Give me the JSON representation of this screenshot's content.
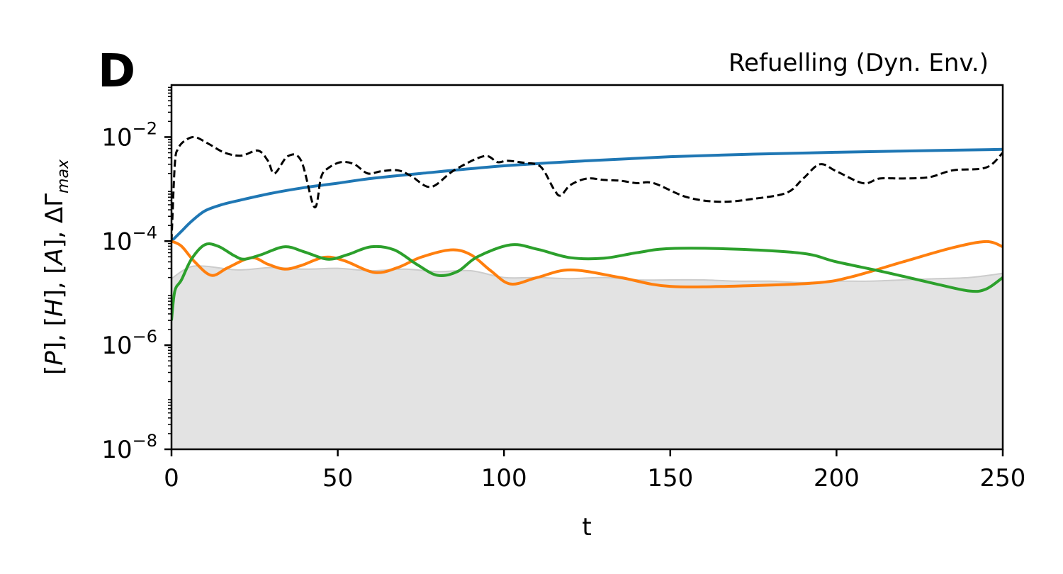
{
  "panel_label": "D",
  "chart_data": {
    "type": "line",
    "title": "Refuelling (Dyn. Env.)",
    "xlabel": "t",
    "ylabel": "[P], [H], [A], ΔΓmax",
    "xlim": [
      0,
      250
    ],
    "ylim": [
      1e-08,
      0.1
    ],
    "yscale": "log",
    "grid": false,
    "legend": "none",
    "x_ticks": [
      "0",
      "50",
      "100",
      "150",
      "200",
      "250"
    ],
    "y_ticks": [
      {
        "base": "10",
        "exp": "−8",
        "value": 1e-08
      },
      {
        "base": "10",
        "exp": "−6",
        "value": 1e-06
      },
      {
        "base": "10",
        "exp": "−4",
        "value": 0.0001
      },
      {
        "base": "10",
        "exp": "−2",
        "value": 0.01
      }
    ],
    "shaded_region": {
      "color": "#e3e3e3",
      "edge_color": "#cccccc",
      "x": [
        0,
        5,
        10,
        20,
        30,
        40,
        50,
        60,
        70,
        80,
        90,
        100,
        110,
        120,
        130,
        140,
        150,
        160,
        170,
        180,
        190,
        200,
        210,
        220,
        230,
        240,
        250
      ],
      "upper": [
        1.9e-05,
        3.1e-05,
        3.3e-05,
        2.8e-05,
        3.1e-05,
        2.9e-05,
        3e-05,
        2.7e-05,
        2.9e-05,
        2.6e-05,
        2.7e-05,
        2e-05,
        2e-05,
        1.9e-05,
        2e-05,
        1.8e-05,
        1.8e-05,
        1.8e-05,
        1.7e-05,
        1.7e-05,
        1.6e-05,
        1.7e-05,
        1.7e-05,
        1.8e-05,
        1.9e-05,
        2e-05,
        2.4e-05
      ],
      "lower": 1e-08
    },
    "series": [
      {
        "color": "#1f77b4",
        "style": "solid",
        "x": [
          0,
          3,
          6,
          10,
          15,
          20,
          30,
          40,
          50,
          60,
          75,
          100,
          125,
          150,
          175,
          200,
          225,
          250
        ],
        "values": [
          0.0001,
          0.000155,
          0.00024,
          0.00038,
          0.0005,
          0.0006,
          0.00083,
          0.00107,
          0.0013,
          0.0016,
          0.002,
          0.0028,
          0.0035,
          0.0042,
          0.0047,
          0.0051,
          0.00545,
          0.0058
        ]
      },
      {
        "color": "#ff7f0e",
        "style": "solid",
        "x": [
          0,
          3,
          7,
          12,
          17,
          24,
          29,
          34,
          39,
          46,
          52,
          61,
          68,
          75,
          84,
          90,
          96,
          102,
          110,
          120,
          135,
          150,
          175,
          195,
          205,
          220,
          235,
          245,
          250
        ],
        "values": [
          0.0001,
          8e-05,
          4e-05,
          2.2e-05,
          3.1e-05,
          4.8e-05,
          3.6e-05,
          2.9e-05,
          3.4e-05,
          4.9e-05,
          4.2e-05,
          2.5e-05,
          3.1e-05,
          4.9e-05,
          6.8e-05,
          5.5e-05,
          2.7e-05,
          1.5e-05,
          2e-05,
          2.8e-05,
          2e-05,
          1.35e-05,
          1.4e-05,
          1.6e-05,
          2.1e-05,
          4e-05,
          7.5e-05,
          9.8e-05,
          7.8e-05
        ]
      },
      {
        "color": "#2ca02c",
        "style": "solid",
        "x": [
          0,
          1,
          3,
          6,
          10,
          14,
          19,
          22,
          27,
          34,
          40,
          47,
          53,
          60,
          67,
          74,
          80,
          86,
          92,
          102,
          110,
          120,
          130,
          140,
          150,
          170,
          190,
          200,
          215,
          230,
          240,
          245,
          250
        ],
        "values": [
          3e-06,
          1.1e-05,
          1.8e-05,
          4.5e-05,
          8.5e-05,
          8e-05,
          5.2e-05,
          4.5e-05,
          5.5e-05,
          7.8e-05,
          6.2e-05,
          4.5e-05,
          5.5e-05,
          7.8e-05,
          6.8e-05,
          3.5e-05,
          2.2e-05,
          2.6e-05,
          5e-05,
          8.5e-05,
          7e-05,
          4.8e-05,
          4.7e-05,
          6e-05,
          7.2e-05,
          7e-05,
          5.8e-05,
          4e-05,
          2.5e-05,
          1.5e-05,
          1.1e-05,
          1.2e-05,
          2e-05
        ]
      },
      {
        "color": "#000000",
        "style": "dashed",
        "x": [
          0,
          1,
          2,
          4,
          7,
          11,
          16,
          21,
          26,
          29,
          31,
          35,
          39,
          43,
          45,
          47,
          51,
          55,
          59,
          63,
          68,
          72,
          78,
          85,
          94,
          98,
          101,
          106,
          111,
          115,
          117,
          120,
          125,
          130,
          135,
          140,
          145,
          155,
          165,
          175,
          185,
          190,
          195,
          200,
          208,
          213,
          220,
          228,
          235,
          245,
          250
        ],
        "values": [
          0.0001,
          0.003,
          0.006,
          0.0085,
          0.01,
          0.0075,
          0.005,
          0.0044,
          0.0055,
          0.0035,
          0.002,
          0.0043,
          0.0035,
          0.00045,
          0.0017,
          0.0025,
          0.0033,
          0.003,
          0.002,
          0.0022,
          0.0023,
          0.0018,
          0.0011,
          0.0023,
          0.0043,
          0.0033,
          0.0035,
          0.0032,
          0.0027,
          0.001,
          0.00075,
          0.0012,
          0.0016,
          0.0015,
          0.00145,
          0.0013,
          0.0013,
          0.0007,
          0.00057,
          0.00065,
          0.00085,
          0.0016,
          0.003,
          0.0022,
          0.0013,
          0.0016,
          0.0016,
          0.0017,
          0.0023,
          0.0026,
          0.005
        ]
      }
    ]
  }
}
